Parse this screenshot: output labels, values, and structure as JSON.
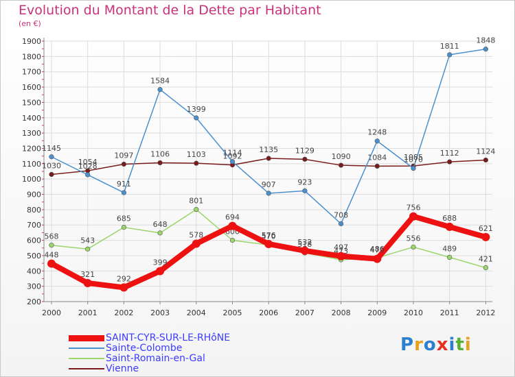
{
  "header": {
    "title": "Evolution du Montant de la Dette par Habitant",
    "unit": "(en €)"
  },
  "logo": {
    "text": "Proxiti",
    "colors": [
      "#2d7fd0",
      "#e8a020",
      "#2d7fd0",
      "#e83020",
      "#2d7fd0",
      "#58b030",
      "#e8a020"
    ]
  },
  "chart_data": {
    "type": "line",
    "title": "Evolution du Montant de la Dette par Habitant",
    "ylabel": "(en €)",
    "xlabel": "",
    "x": [
      "2000",
      "2001",
      "2002",
      "2003",
      "2004",
      "2005",
      "2006",
      "2007",
      "2008",
      "2009",
      "2010",
      "2011",
      "2012"
    ],
    "ylim": [
      200,
      1900
    ],
    "yticks": [
      200,
      300,
      400,
      500,
      600,
      700,
      800,
      900,
      1000,
      1100,
      1200,
      1300,
      1400,
      1500,
      1600,
      1700,
      1800,
      1900
    ],
    "grid": true,
    "legend_position": "bottom-left",
    "series": [
      {
        "name": "Vienne",
        "color": "#7a1a1a",
        "values": [
          1030,
          1054,
          1097,
          1106,
          1103,
          1092,
          1135,
          1129,
          1090,
          1084,
          1085,
          1112,
          1124
        ]
      },
      {
        "name": "Saint-Romain-en-Gal",
        "color": "#9ad66a",
        "values": [
          568,
          543,
          685,
          648,
          801,
          600,
          570,
          518,
          473,
          486,
          556,
          489,
          421
        ]
      },
      {
        "name": "Sainte-Colombe",
        "color": "#4a90cf",
        "values": [
          1145,
          1028,
          911,
          1584,
          1399,
          1114,
          907,
          923,
          708,
          1248,
          1070,
          1811,
          1848
        ]
      },
      {
        "name": "SAINT-CYR-SUR-LE-RHôNE",
        "color": "#ee1111",
        "values": [
          448,
          321,
          292,
          399,
          578,
          694,
          576,
          532,
          497,
          479,
          756,
          688,
          621
        ]
      }
    ],
    "legend": [
      "SAINT-CYR-SUR-LE-RHôNE",
      "Sainte-Colombe",
      "Saint-Romain-en-Gal",
      "Vienne"
    ]
  }
}
